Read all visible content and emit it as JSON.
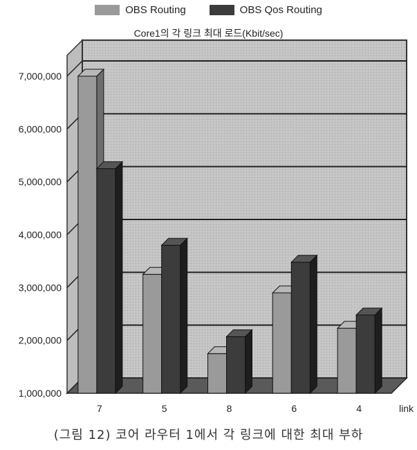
{
  "chart_data": {
    "type": "bar",
    "title": "Core1의 각 링크 최대 로드(Kbit/sec)",
    "xlabel": "link",
    "ylabel": "",
    "categories": [
      "7",
      "5",
      "8",
      "6",
      "4"
    ],
    "series": [
      {
        "name": "OBS Routing",
        "values": [
          7000000,
          3250000,
          1750000,
          2900000,
          2230000
        ]
      },
      {
        "name": "OBS Qos Routing",
        "values": [
          5250000,
          3800000,
          2070000,
          3480000,
          2480000
        ]
      }
    ],
    "ylim": [
      1000000,
      7000000
    ],
    "yticks": [
      "1,000,000",
      "2,000,000",
      "3,000,000",
      "4,000,000",
      "5,000,000",
      "6,000,000",
      "7,000,000"
    ],
    "grid": true,
    "legend_position": "top",
    "colors": {
      "obs_routing": "#9a9a9a",
      "obs_qos_routing": "#3c3c3c",
      "background": "#c4c4c4",
      "floor": "#5a5a5a"
    }
  },
  "caption": "(그림 12) 코어 라우터 1에서 각 링크에 대한 최대 부하"
}
